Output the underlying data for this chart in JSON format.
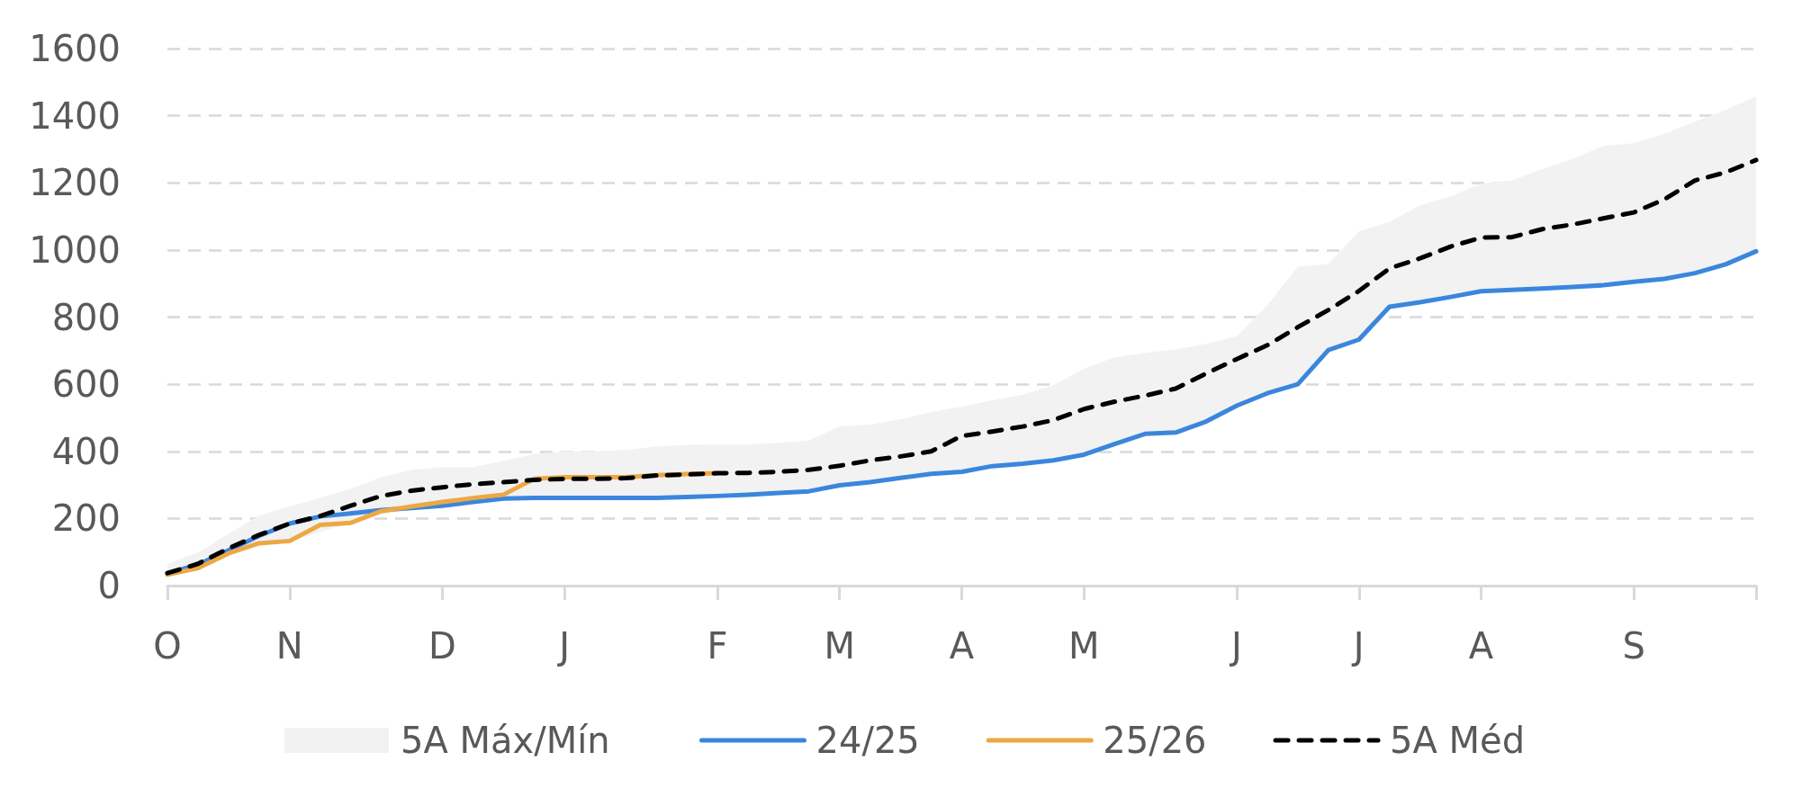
{
  "chart_data": {
    "type": "line",
    "categories": [
      "O",
      null,
      null,
      null,
      "N",
      null,
      null,
      null,
      null,
      "D",
      null,
      null,
      null,
      "J",
      null,
      null,
      null,
      null,
      "F",
      null,
      null,
      null,
      "M",
      null,
      null,
      null,
      "A",
      null,
      null,
      null,
      "M",
      null,
      null,
      null,
      null,
      "J",
      null,
      null,
      null,
      "J",
      null,
      null,
      null,
      "A",
      null,
      null,
      null,
      null,
      "S",
      null,
      null,
      null,
      null
    ],
    "ylim": [
      0,
      1600
    ],
    "yticks": [
      0,
      200,
      400,
      600,
      800,
      1000,
      1200,
      1400,
      1600
    ],
    "grid": "y",
    "legend": "bottom",
    "marker": "none",
    "series": [
      {
        "name": "5A Máx/Mín",
        "type": "area",
        "color": "#f2f2f2",
        "values": [
          null,
          null,
          null,
          null,
          null,
          null,
          null,
          null,
          null,
          null,
          null,
          null,
          null,
          null,
          null,
          null,
          null,
          null,
          null,
          null,
          null,
          null,
          null,
          null,
          null,
          null,
          null,
          null,
          null,
          null,
          null,
          null,
          null,
          null,
          null,
          null,
          null,
          null,
          null,
          null,
          null,
          null,
          null,
          null,
          null,
          null,
          null,
          null,
          null,
          null,
          null,
          null,
          null
        ],
        "lower": [
          35,
          50,
          95,
          125,
          130,
          160,
          185,
          212,
          228,
          236,
          249,
          259,
          261,
          261,
          261,
          261,
          261,
          264,
          267,
          271,
          276,
          281,
          299,
          308,
          321,
          333,
          339,
          356,
          363,
          373,
          390,
          422,
          452,
          456,
          489,
          536,
          573,
          600,
          702,
          733,
          831,
          844,
          860,
          877,
          881,
          885,
          890,
          895,
          905,
          914,
          931,
          957,
          996
        ],
        "upper": [
          64,
          99,
          154,
          209,
          236,
          261,
          289,
          323,
          345,
          353,
          353,
          372,
          392,
          400,
          400,
          404,
          415,
          419,
          421,
          421,
          425,
          433,
          474,
          480,
          496,
          517,
          533,
          552,
          569,
          597,
          646,
          680,
          693,
          704,
          720,
          743,
          835,
          951,
          958,
          1055,
          1084,
          1133,
          1160,
          1197,
          1207,
          1241,
          1272,
          1310,
          1318,
          1346,
          1382,
          1417,
          1457
        ]
      },
      {
        "name": "24/25",
        "color": "#3b86dd",
        "line_style": "solid",
        "values": [
          37,
          62,
          105,
          148,
          185,
          206,
          215,
          225,
          231,
          238,
          249,
          259,
          261,
          261,
          261,
          261,
          261,
          264,
          267,
          271,
          276,
          281,
          299,
          308,
          321,
          333,
          339,
          356,
          363,
          373,
          390,
          422,
          452,
          456,
          489,
          536,
          573,
          600,
          702,
          733,
          831,
          844,
          860,
          877,
          881,
          885,
          890,
          895,
          905,
          914,
          931,
          957,
          996
        ]
      },
      {
        "name": "25/26",
        "color": "#eba844",
        "line_style": "solid",
        "values": [
          33,
          52,
          96,
          126,
          133,
          181,
          187,
          222,
          236,
          249,
          261,
          271,
          318,
          323,
          323,
          323,
          329,
          332,
          335,
          null,
          null,
          null,
          null,
          null,
          null,
          null,
          null,
          null,
          null,
          null,
          null,
          null,
          null,
          null,
          null,
          null,
          null,
          null,
          null,
          null,
          null,
          null,
          null,
          null,
          null,
          null,
          null,
          null,
          null,
          null,
          null,
          null,
          null
        ]
      },
      {
        "name": "5A Méd",
        "color": "#000000",
        "line_style": "dashed",
        "values": [
          37,
          65,
          111,
          151,
          185,
          207,
          238,
          267,
          283,
          293,
          302,
          308,
          315,
          318,
          318,
          320,
          328,
          331,
          335,
          336,
          339,
          345,
          357,
          373,
          385,
          400,
          446,
          459,
          474,
          493,
          526,
          548,
          566,
          587,
          632,
          675,
          716,
          770,
          821,
          878,
          945,
          975,
          1010,
          1037,
          1038,
          1062,
          1076,
          1094,
          1112,
          1151,
          1207,
          1231,
          1268
        ]
      }
    ]
  }
}
